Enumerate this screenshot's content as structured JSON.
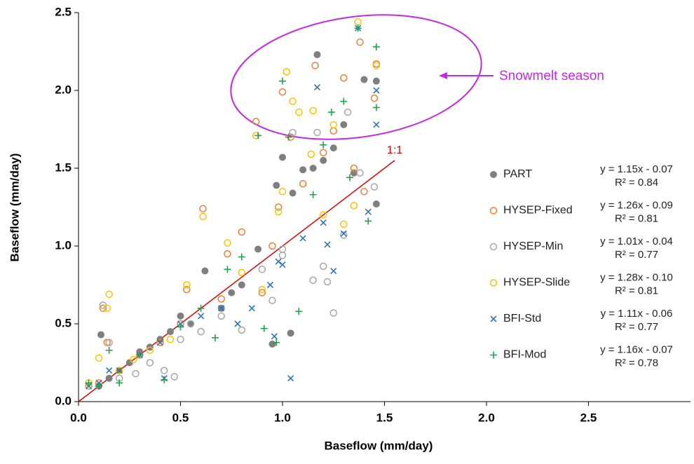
{
  "chart_data": {
    "type": "scatter",
    "xlabel": "Baseflow (mm/day)",
    "ylabel": "Baseflow (mm/day)",
    "xlim": [
      0,
      3
    ],
    "ylim": [
      0,
      2.5
    ],
    "xticks": [
      {
        "value": 0,
        "label": "0.0"
      },
      0.5,
      {
        "value": 1,
        "label": "1.0"
      },
      1.5,
      {
        "value": 2,
        "label": "2.0"
      },
      2.5
    ],
    "yticks": [
      {
        "value": 0,
        "label": "0.0"
      },
      0.5,
      {
        "value": 1,
        "label": "1.0"
      },
      1.5,
      {
        "value": 2,
        "label": "2.0"
      },
      2.5
    ],
    "reference_line": {
      "label": "1:1",
      "color": "#e00000",
      "x": [
        0,
        1.55
      ],
      "y": [
        0,
        1.55
      ]
    },
    "annotation": {
      "text": "Snowmelt season",
      "color": "#c427e6"
    },
    "series": [
      {
        "name": "PART",
        "color": "#7f7f7f",
        "marker": "filled-circle",
        "equation": "y = 1.15x - 0.07",
        "r2": "R² = 0.84",
        "x": [
          0.1,
          0.15,
          0.2,
          0.25,
          0.3,
          0.35,
          0.4,
          0.45,
          0.5,
          0.55,
          0.62,
          0.7,
          0.75,
          0.8,
          0.88,
          0.95,
          0.97,
          1.0,
          1.04,
          1.05,
          1.1,
          1.15,
          1.17,
          1.2,
          1.25,
          1.3,
          1.35,
          1.4,
          1.46,
          0.11,
          1.46
        ],
        "y": [
          0.1,
          0.15,
          0.2,
          0.25,
          0.32,
          0.35,
          0.4,
          0.45,
          0.55,
          0.5,
          0.84,
          0.6,
          0.7,
          0.75,
          0.98,
          0.37,
          1.39,
          1.57,
          0.44,
          1.34,
          1.49,
          1.5,
          2.23,
          1.55,
          1.63,
          1.78,
          1.47,
          2.07,
          1.27,
          0.43,
          2.06
        ]
      },
      {
        "name": "HYSEP-Fixed",
        "color": "#ed7d31",
        "marker": "circle",
        "equation": "y = 1.26x - 0.09",
        "r2": "R² = 0.81",
        "x": [
          0.05,
          0.1,
          0.14,
          0.2,
          0.3,
          0.4,
          0.5,
          0.53,
          0.61,
          0.7,
          0.73,
          0.8,
          0.87,
          0.9,
          0.95,
          0.98,
          1.0,
          1.04,
          1.1,
          1.16,
          1.2,
          1.25,
          1.3,
          1.35,
          1.38,
          1.4,
          1.45,
          1.46,
          0.12
        ],
        "y": [
          0.1,
          0.12,
          0.38,
          0.2,
          0.3,
          0.38,
          0.5,
          0.72,
          1.24,
          0.66,
          0.95,
          1.09,
          1.8,
          0.7,
          1.0,
          1.25,
          1.99,
          1.7,
          1.4,
          2.16,
          1.6,
          1.74,
          2.08,
          1.5,
          2.31,
          1.35,
          1.95,
          2.17,
          0.6
        ]
      },
      {
        "name": "HYSEP-Min",
        "color": "#a5a5a5",
        "marker": "circle",
        "equation": "y = 1.01x - 0.04",
        "r2": "R² = 0.77",
        "x": [
          0.05,
          0.12,
          0.15,
          0.2,
          0.28,
          0.35,
          0.42,
          0.47,
          0.5,
          0.55,
          0.6,
          0.7,
          0.8,
          0.9,
          0.95,
          1.0,
          1.05,
          1.0,
          1.15,
          1.17,
          1.2,
          1.22,
          1.25,
          1.3,
          1.32,
          1.38,
          1.45
        ],
        "y": [
          0.1,
          0.62,
          0.38,
          0.15,
          0.18,
          0.25,
          0.2,
          0.16,
          0.4,
          0.5,
          0.45,
          0.55,
          0.46,
          0.85,
          0.65,
          0.98,
          1.73,
          0.94,
          0.78,
          1.73,
          0.87,
          0.77,
          0.57,
          1.07,
          1.86,
          1.47,
          1.38
        ]
      },
      {
        "name": "HYSEP-Slide",
        "color": "#ffc000",
        "marker": "circle",
        "equation": "y = 1.28x - 0.10",
        "r2": "R² = 0.81",
        "x": [
          0.05,
          0.1,
          0.15,
          0.2,
          0.27,
          0.35,
          0.45,
          0.53,
          0.61,
          0.73,
          0.8,
          0.87,
          0.9,
          0.98,
          1.0,
          1.02,
          1.05,
          1.08,
          1.14,
          1.15,
          1.2,
          1.25,
          1.3,
          1.35,
          1.37,
          1.46,
          0.14
        ],
        "y": [
          0.12,
          0.28,
          0.69,
          0.2,
          0.27,
          0.33,
          0.4,
          0.75,
          1.19,
          1.02,
          0.83,
          1.71,
          0.72,
          1.22,
          1.35,
          2.12,
          1.93,
          1.86,
          1.59,
          1.87,
          1.2,
          1.78,
          1.14,
          1.26,
          2.44,
          2.16,
          0.6
        ]
      },
      {
        "name": "BFI-Std",
        "color": "#2e75b6",
        "marker": "x",
        "equation": "y = 1.11x - 0.06",
        "r2": "R² = 0.77",
        "x": [
          0.05,
          0.1,
          0.15,
          0.2,
          0.3,
          0.4,
          0.5,
          0.6,
          0.7,
          0.78,
          0.85,
          0.94,
          0.96,
          0.98,
          1.0,
          1.04,
          1.1,
          1.17,
          1.2,
          1.22,
          1.25,
          1.3,
          1.37,
          1.42,
          1.46,
          1.46,
          0.42
        ],
        "y": [
          0.1,
          0.12,
          0.2,
          0.2,
          0.3,
          0.38,
          0.5,
          0.55,
          0.6,
          0.5,
          0.6,
          0.75,
          0.42,
          0.9,
          0.88,
          0.15,
          1.05,
          2.02,
          1.15,
          1.01,
          0.84,
          1.08,
          2.4,
          1.22,
          2.0,
          1.78,
          0.15
        ]
      },
      {
        "name": "BFI-Mod",
        "color": "#22a050",
        "marker": "plus",
        "equation": "y = 1.16x - 0.07",
        "r2": "R² = 0.78",
        "x": [
          0.05,
          0.1,
          0.15,
          0.2,
          0.3,
          0.42,
          0.5,
          0.6,
          0.67,
          0.73,
          0.8,
          0.88,
          0.91,
          0.97,
          1.0,
          1.03,
          1.08,
          1.15,
          1.2,
          1.24,
          1.3,
          1.33,
          1.37,
          1.42,
          1.46,
          1.46
        ],
        "y": [
          0.12,
          0.1,
          0.33,
          0.12,
          0.3,
          0.14,
          0.48,
          0.6,
          0.41,
          0.85,
          0.93,
          1.71,
          0.47,
          0.38,
          2.06,
          1.7,
          0.58,
          1.33,
          1.65,
          1.86,
          1.93,
          1.44,
          2.4,
          1.16,
          2.28,
          1.89
        ]
      }
    ]
  }
}
